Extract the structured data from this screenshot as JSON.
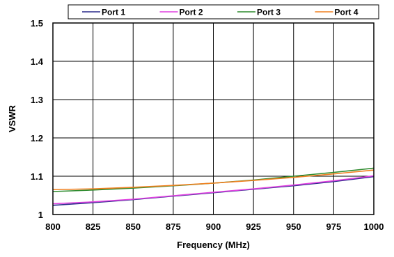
{
  "chart_data": {
    "type": "line",
    "title": "",
    "xlabel": "Frequency (MHz)",
    "ylabel": "VSWR",
    "xlim": [
      800,
      1000
    ],
    "ylim": [
      1.0,
      1.5
    ],
    "x_ticks": [
      "800",
      "825",
      "850",
      "875",
      "900",
      "925",
      "950",
      "975",
      "1000"
    ],
    "y_ticks": [
      "1",
      "1.1",
      "1.2",
      "1.3",
      "1.4",
      "1.5"
    ],
    "grid": true,
    "legend_position": "top",
    "x": [
      800,
      825,
      850,
      875,
      900,
      925,
      950,
      975,
      1000
    ],
    "series": [
      {
        "name": "Port 1",
        "color": "#2b2b8c",
        "values": [
          1.024,
          1.031,
          1.039,
          1.048,
          1.057,
          1.066,
          1.075,
          1.086,
          1.099
        ]
      },
      {
        "name": "Port 2",
        "color": "#e040e0",
        "values": [
          1.028,
          1.033,
          1.04,
          1.049,
          1.058,
          1.067,
          1.077,
          1.088,
          1.101
        ]
      },
      {
        "name": "Port 3",
        "color": "#2e8b2e",
        "values": [
          1.06,
          1.064,
          1.069,
          1.075,
          1.082,
          1.09,
          1.1,
          1.11,
          1.121
        ]
      },
      {
        "name": "Port 4",
        "color": "#f08020",
        "values": [
          1.065,
          1.067,
          1.071,
          1.076,
          1.082,
          1.089,
          1.097,
          1.106,
          1.116
        ]
      }
    ]
  }
}
